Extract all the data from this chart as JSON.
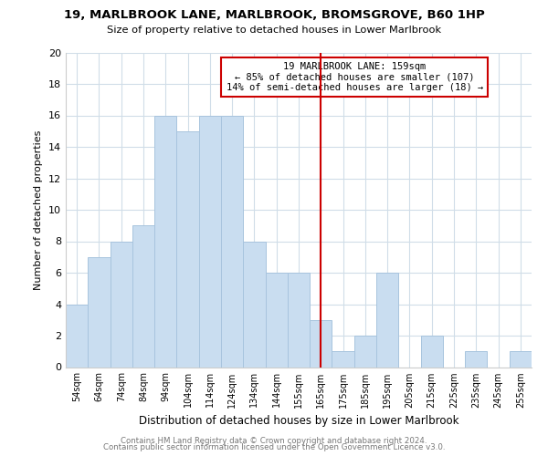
{
  "title": "19, MARLBROOK LANE, MARLBROOK, BROMSGROVE, B60 1HP",
  "subtitle": "Size of property relative to detached houses in Lower Marlbrook",
  "xlabel": "Distribution of detached houses by size in Lower Marlbrook",
  "ylabel": "Number of detached properties",
  "bar_labels": [
    "54sqm",
    "64sqm",
    "74sqm",
    "84sqm",
    "94sqm",
    "104sqm",
    "114sqm",
    "124sqm",
    "134sqm",
    "144sqm",
    "155sqm",
    "165sqm",
    "175sqm",
    "185sqm",
    "195sqm",
    "205sqm",
    "215sqm",
    "225sqm",
    "235sqm",
    "245sqm",
    "255sqm"
  ],
  "bar_values": [
    4,
    7,
    8,
    9,
    16,
    15,
    16,
    16,
    8,
    6,
    6,
    3,
    1,
    2,
    6,
    0,
    2,
    0,
    1,
    0,
    1
  ],
  "bar_color": "#c9ddf0",
  "bar_edge_color": "#a8c4de",
  "vline_x": 11.0,
  "vline_color": "#cc0000",
  "annotation_title": "19 MARLBROOK LANE: 159sqm",
  "annotation_line1": "← 85% of detached houses are smaller (107)",
  "annotation_line2": "14% of semi-detached houses are larger (18) →",
  "annotation_box_color": "#ffffff",
  "annotation_box_edge": "#cc0000",
  "ylim": [
    0,
    20
  ],
  "yticks": [
    0,
    2,
    4,
    6,
    8,
    10,
    12,
    14,
    16,
    18,
    20
  ],
  "footer1": "Contains HM Land Registry data © Crown copyright and database right 2024.",
  "footer2": "Contains public sector information licensed under the Open Government Licence v3.0.",
  "background_color": "#ffffff",
  "grid_color": "#d0dde8"
}
